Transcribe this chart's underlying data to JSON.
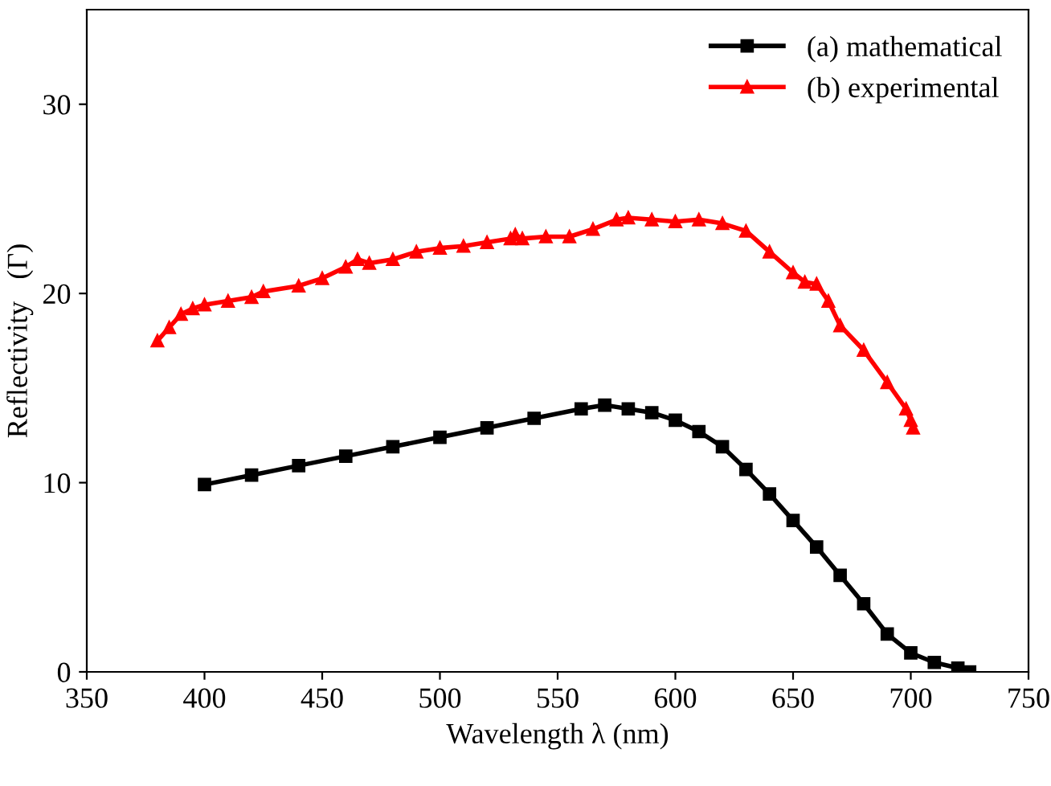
{
  "chart_data": {
    "type": "line",
    "xlabel": "Wavelength λ (nm)",
    "ylabel": "Reflectivity   (Γ)",
    "xlim": [
      350,
      750
    ],
    "xticks": [
      350,
      400,
      450,
      500,
      550,
      600,
      650,
      700,
      750
    ],
    "ylim": [
      0,
      35
    ],
    "yticks": [
      0,
      10,
      20,
      30
    ],
    "grid": false,
    "legend": "top right",
    "line_style": "solid",
    "series": [
      {
        "name": "(a) mathematical",
        "color": "#000000",
        "marker": "square",
        "x": [
          400,
          420,
          440,
          460,
          480,
          500,
          520,
          540,
          560,
          570,
          580,
          590,
          600,
          610,
          620,
          630,
          640,
          650,
          660,
          670,
          680,
          690,
          700,
          710,
          720,
          725
        ],
        "values": [
          9.9,
          10.4,
          10.9,
          11.4,
          11.9,
          12.4,
          12.9,
          13.4,
          13.9,
          14.1,
          13.9,
          13.7,
          13.3,
          12.7,
          11.9,
          10.7,
          9.4,
          8.0,
          6.6,
          5.1,
          3.6,
          2.0,
          1.0,
          0.5,
          0.2,
          0.0
        ]
      },
      {
        "name": "(b) experimental",
        "color": "#ff0000",
        "marker": "triangle",
        "x": [
          380,
          385,
          390,
          395,
          400,
          410,
          420,
          425,
          440,
          450,
          460,
          465,
          470,
          480,
          490,
          500,
          510,
          520,
          530,
          532,
          535,
          545,
          555,
          565,
          575,
          580,
          590,
          600,
          610,
          620,
          630,
          640,
          650,
          655,
          660,
          665,
          670,
          680,
          690,
          698,
          700,
          701
        ],
        "values": [
          17.5,
          18.2,
          18.9,
          19.2,
          19.4,
          19.6,
          19.8,
          20.1,
          20.4,
          20.8,
          21.4,
          21.8,
          21.6,
          21.8,
          22.2,
          22.4,
          22.5,
          22.7,
          22.9,
          23.1,
          22.9,
          23.0,
          23.0,
          23.4,
          23.9,
          24.0,
          23.9,
          23.8,
          23.9,
          23.7,
          23.3,
          22.2,
          21.1,
          20.6,
          20.5,
          19.6,
          18.3,
          17.0,
          15.3,
          13.9,
          13.3,
          12.9
        ]
      }
    ]
  }
}
